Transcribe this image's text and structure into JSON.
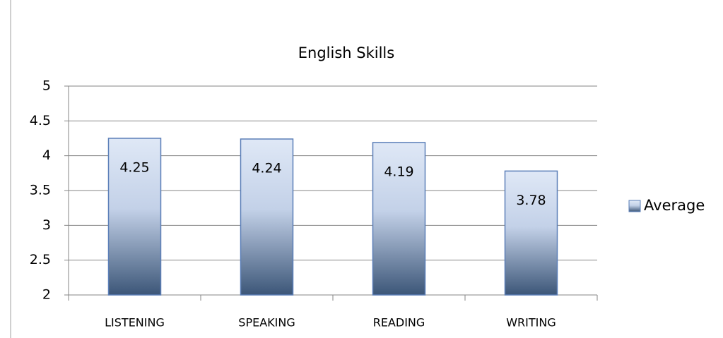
{
  "chart_data": {
    "type": "bar",
    "title": "English Skills",
    "categories": [
      "LISTENING",
      "SPEAKING",
      "READING",
      "WRITING"
    ],
    "series": [
      {
        "name": "Average",
        "color": "#5b7fb8",
        "values": [
          4.25,
          4.24,
          4.19,
          3.78
        ]
      }
    ],
    "ylim": [
      2,
      5
    ],
    "yticks": [
      2,
      2.5,
      3,
      3.5,
      4,
      4.5,
      5
    ],
    "grid": true,
    "legend": "right"
  }
}
